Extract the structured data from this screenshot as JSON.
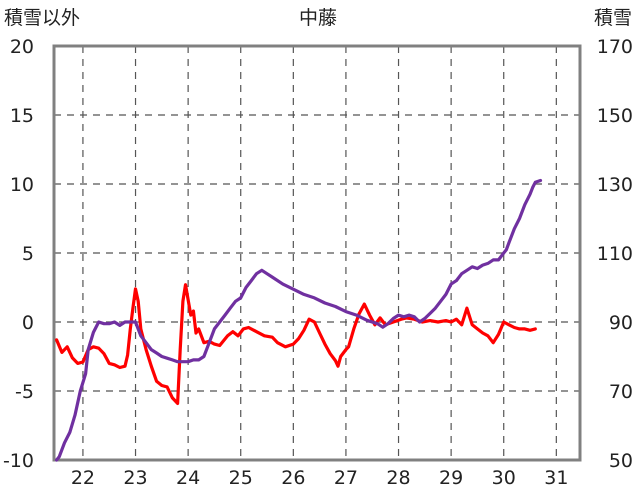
{
  "chart_data": {
    "type": "line",
    "title": "中藤",
    "left_axis_label": "積雪以外",
    "right_axis_label": "積雪",
    "x_ticks": [
      "22",
      "23",
      "24",
      "25",
      "26",
      "27",
      "28",
      "29",
      "30",
      "31"
    ],
    "x_range": [
      21.45,
      31.45
    ],
    "left_ylim": [
      -10,
      20
    ],
    "left_ticks": [
      "-10",
      "-5",
      "0",
      "5",
      "10",
      "15",
      "20"
    ],
    "right_ylim": [
      50,
      170
    ],
    "right_ticks": [
      "50",
      "70",
      "90",
      "110",
      "130",
      "150",
      "170"
    ],
    "grid": true,
    "series": [
      {
        "color": "#ff0000",
        "axis": "left",
        "points": [
          [
            21.5,
            -1.3
          ],
          [
            21.6,
            -2.2
          ],
          [
            21.7,
            -1.8
          ],
          [
            21.8,
            -2.6
          ],
          [
            21.9,
            -3.0
          ],
          [
            22.0,
            -2.9
          ],
          [
            22.1,
            -2.0
          ],
          [
            22.2,
            -1.8
          ],
          [
            22.3,
            -1.9
          ],
          [
            22.4,
            -2.3
          ],
          [
            22.5,
            -3.0
          ],
          [
            22.6,
            -3.1
          ],
          [
            22.7,
            -3.3
          ],
          [
            22.8,
            -3.2
          ],
          [
            22.85,
            -2.4
          ],
          [
            22.9,
            -0.5
          ],
          [
            22.95,
            1.0
          ],
          [
            23.0,
            2.4
          ],
          [
            23.05,
            1.5
          ],
          [
            23.1,
            -0.5
          ],
          [
            23.2,
            -2.0
          ],
          [
            23.3,
            -3.2
          ],
          [
            23.4,
            -4.3
          ],
          [
            23.5,
            -4.6
          ],
          [
            23.6,
            -4.7
          ],
          [
            23.7,
            -5.5
          ],
          [
            23.8,
            -5.9
          ],
          [
            23.85,
            -2.0
          ],
          [
            23.9,
            1.5
          ],
          [
            23.95,
            2.7
          ],
          [
            24.05,
            0.5
          ],
          [
            24.1,
            0.8
          ],
          [
            24.15,
            -0.8
          ],
          [
            24.2,
            -0.5
          ],
          [
            24.3,
            -1.5
          ],
          [
            24.4,
            -1.4
          ],
          [
            24.5,
            -1.6
          ],
          [
            24.6,
            -1.7
          ],
          [
            24.75,
            -1.0
          ],
          [
            24.85,
            -0.7
          ],
          [
            24.95,
            -1.0
          ],
          [
            25.05,
            -0.5
          ],
          [
            25.15,
            -0.4
          ],
          [
            25.3,
            -0.7
          ],
          [
            25.45,
            -1.0
          ],
          [
            25.6,
            -1.1
          ],
          [
            25.7,
            -1.5
          ],
          [
            25.85,
            -1.8
          ],
          [
            26.0,
            -1.6
          ],
          [
            26.1,
            -1.2
          ],
          [
            26.2,
            -0.6
          ],
          [
            26.3,
            0.2
          ],
          [
            26.4,
            0.0
          ],
          [
            26.5,
            -0.8
          ],
          [
            26.6,
            -1.6
          ],
          [
            26.7,
            -2.3
          ],
          [
            26.8,
            -2.8
          ],
          [
            26.85,
            -3.2
          ],
          [
            26.9,
            -2.5
          ],
          [
            27.0,
            -2.0
          ],
          [
            27.05,
            -1.8
          ],
          [
            27.15,
            -0.5
          ],
          [
            27.25,
            0.6
          ],
          [
            27.35,
            1.3
          ],
          [
            27.45,
            0.5
          ],
          [
            27.55,
            -0.2
          ],
          [
            27.65,
            0.3
          ],
          [
            27.75,
            -0.2
          ],
          [
            27.9,
            0.0
          ],
          [
            28.05,
            0.2
          ],
          [
            28.15,
            0.3
          ],
          [
            28.3,
            0.2
          ],
          [
            28.45,
            0.0
          ],
          [
            28.6,
            0.1
          ],
          [
            28.75,
            0.0
          ],
          [
            28.9,
            0.1
          ],
          [
            29.0,
            0.0
          ],
          [
            29.1,
            0.2
          ],
          [
            29.2,
            -0.2
          ],
          [
            29.3,
            1.0
          ],
          [
            29.4,
            -0.2
          ],
          [
            29.5,
            -0.5
          ],
          [
            29.6,
            -0.8
          ],
          [
            29.7,
            -1.0
          ],
          [
            29.8,
            -1.5
          ],
          [
            29.9,
            -0.9
          ],
          [
            30.0,
            0.0
          ],
          [
            30.1,
            -0.2
          ],
          [
            30.2,
            -0.4
          ],
          [
            30.3,
            -0.5
          ],
          [
            30.4,
            -0.5
          ],
          [
            30.5,
            -0.6
          ],
          [
            30.6,
            -0.5
          ]
        ]
      },
      {
        "color": "#7030a0",
        "axis": "right",
        "points": [
          [
            21.5,
            50.0
          ],
          [
            21.55,
            51.0
          ],
          [
            21.65,
            55.0
          ],
          [
            21.75,
            58.0
          ],
          [
            21.85,
            63.0
          ],
          [
            21.95,
            70.0
          ],
          [
            22.05,
            75.0
          ],
          [
            22.1,
            82.0
          ],
          [
            22.2,
            87.0
          ],
          [
            22.3,
            90.0
          ],
          [
            22.4,
            89.5
          ],
          [
            22.5,
            89.5
          ],
          [
            22.6,
            90.0
          ],
          [
            22.7,
            89.0
          ],
          [
            22.8,
            90.0
          ],
          [
            22.9,
            90.0
          ],
          [
            23.0,
            90.0
          ],
          [
            23.1,
            86.0
          ],
          [
            23.2,
            84.0
          ],
          [
            23.3,
            82.0
          ],
          [
            23.4,
            81.0
          ],
          [
            23.5,
            80.0
          ],
          [
            23.6,
            79.5
          ],
          [
            23.7,
            79.0
          ],
          [
            23.8,
            78.5
          ],
          [
            23.9,
            78.5
          ],
          [
            24.0,
            78.5
          ],
          [
            24.1,
            79.0
          ],
          [
            24.2,
            79.0
          ],
          [
            24.3,
            80.0
          ],
          [
            24.4,
            84.0
          ],
          [
            24.5,
            88.0
          ],
          [
            24.6,
            90.0
          ],
          [
            24.7,
            92.0
          ],
          [
            24.8,
            94.0
          ],
          [
            24.9,
            96.0
          ],
          [
            25.0,
            97.0
          ],
          [
            25.1,
            100.0
          ],
          [
            25.2,
            102.0
          ],
          [
            25.3,
            104.0
          ],
          [
            25.4,
            105.0
          ],
          [
            25.5,
            104.0
          ],
          [
            25.6,
            103.0
          ],
          [
            25.8,
            101.0
          ],
          [
            26.0,
            99.5
          ],
          [
            26.2,
            98.0
          ],
          [
            26.4,
            97.0
          ],
          [
            26.6,
            95.5
          ],
          [
            26.8,
            94.5
          ],
          [
            27.0,
            93.0
          ],
          [
            27.2,
            92.0
          ],
          [
            27.4,
            90.5
          ],
          [
            27.6,
            89.5
          ],
          [
            27.7,
            88.5
          ],
          [
            27.8,
            89.5
          ],
          [
            27.9,
            91.0
          ],
          [
            28.0,
            92.0
          ],
          [
            28.1,
            91.5
          ],
          [
            28.2,
            92.0
          ],
          [
            28.3,
            91.5
          ],
          [
            28.4,
            90.0
          ],
          [
            28.5,
            91.0
          ],
          [
            28.6,
            92.5
          ],
          [
            28.7,
            94.0
          ],
          [
            28.8,
            96.0
          ],
          [
            28.9,
            98.0
          ],
          [
            29.0,
            101.0
          ],
          [
            29.1,
            102.0
          ],
          [
            29.2,
            104.0
          ],
          [
            29.3,
            105.0
          ],
          [
            29.4,
            106.0
          ],
          [
            29.5,
            105.5
          ],
          [
            29.6,
            106.5
          ],
          [
            29.7,
            107.0
          ],
          [
            29.8,
            108.0
          ],
          [
            29.9,
            108.0
          ],
          [
            30.0,
            110.0
          ],
          [
            30.05,
            111.0
          ],
          [
            30.1,
            113.0
          ],
          [
            30.2,
            117.0
          ],
          [
            30.3,
            120.0
          ],
          [
            30.4,
            124.0
          ],
          [
            30.5,
            127.0
          ],
          [
            30.55,
            129.0
          ],
          [
            30.6,
            130.5
          ],
          [
            30.7,
            131.0
          ]
        ]
      }
    ]
  }
}
